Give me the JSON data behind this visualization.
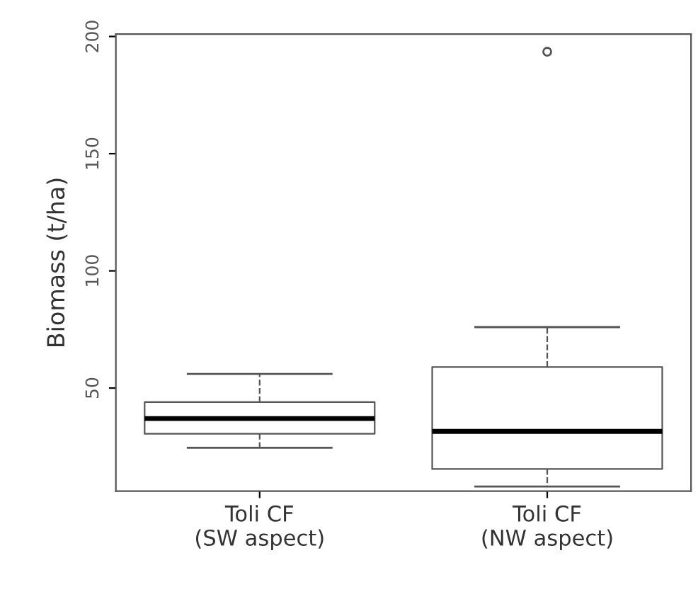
{
  "chart_data": {
    "type": "box",
    "ylabel": "Biomass (t/ha)",
    "categories": [
      "Toli CF\n(SW aspect)",
      "Toli CF\n(NW aspect)"
    ],
    "boxes": [
      {
        "low": 24.5,
        "q1": 30.5,
        "median": 37,
        "q3": 44,
        "high": 56
      },
      {
        "low": 8,
        "q1": 15.5,
        "median": 31.5,
        "q3": 59,
        "high": 76,
        "outliers": [
          193.5
        ]
      }
    ],
    "ylim": [
      6,
      201
    ],
    "yticks": [
      50,
      100,
      150,
      200
    ],
    "grid": false
  }
}
